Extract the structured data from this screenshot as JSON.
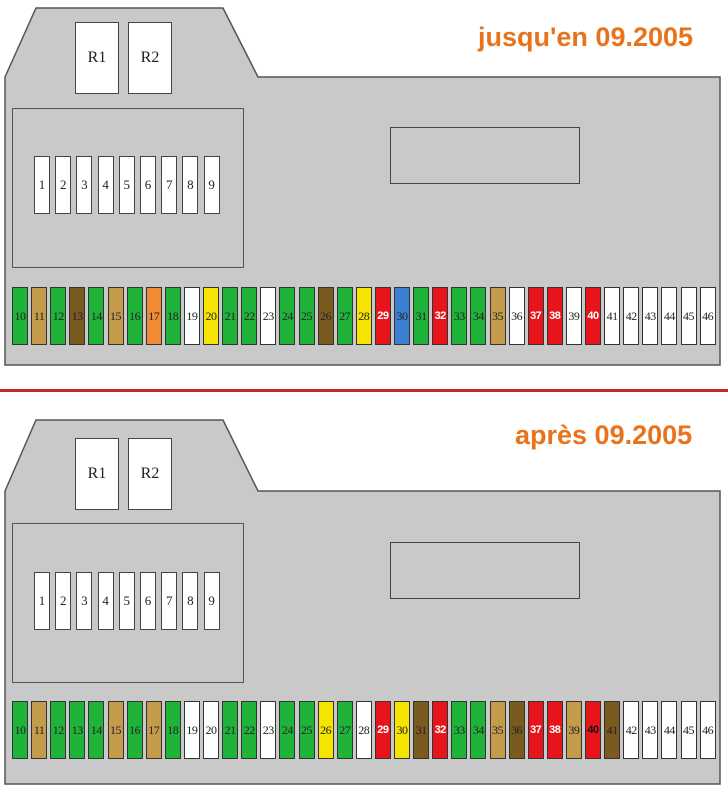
{
  "colors": {
    "white": "#ffffff",
    "green": "#1fb33a",
    "tan": "#c49a4b",
    "brown": "#7b5a20",
    "orange": "#f08a36",
    "yellow": "#f5e400",
    "red": "#e8141c",
    "blue": "#3a7fd0",
    "housing": "#c9c9c9",
    "title": "#e8731a",
    "divider": "#c0282a"
  },
  "diagrams": [
    {
      "title": "jusqu'en 09.2005",
      "relays": [
        "R1",
        "R2"
      ],
      "small_fuses": [
        "1",
        "2",
        "3",
        "4",
        "5",
        "6",
        "7",
        "8",
        "9"
      ],
      "fuses": [
        {
          "n": "10",
          "c": "green"
        },
        {
          "n": "11",
          "c": "tan"
        },
        {
          "n": "12",
          "c": "green"
        },
        {
          "n": "13",
          "c": "brown"
        },
        {
          "n": "14",
          "c": "green"
        },
        {
          "n": "15",
          "c": "tan"
        },
        {
          "n": "16",
          "c": "green"
        },
        {
          "n": "17",
          "c": "orange"
        },
        {
          "n": "18",
          "c": "green"
        },
        {
          "n": "19",
          "c": "white"
        },
        {
          "n": "20",
          "c": "yellow"
        },
        {
          "n": "21",
          "c": "green"
        },
        {
          "n": "22",
          "c": "green"
        },
        {
          "n": "23",
          "c": "white"
        },
        {
          "n": "24",
          "c": "green"
        },
        {
          "n": "25",
          "c": "green"
        },
        {
          "n": "26",
          "c": "brown"
        },
        {
          "n": "27",
          "c": "green"
        },
        {
          "n": "28",
          "c": "yellow"
        },
        {
          "n": "29",
          "c": "red"
        },
        {
          "n": "30",
          "c": "blue"
        },
        {
          "n": "31",
          "c": "green"
        },
        {
          "n": "32",
          "c": "red"
        },
        {
          "n": "33",
          "c": "green"
        },
        {
          "n": "34",
          "c": "green"
        },
        {
          "n": "35",
          "c": "tan"
        },
        {
          "n": "36",
          "c": "white"
        },
        {
          "n": "37",
          "c": "red"
        },
        {
          "n": "38",
          "c": "red"
        },
        {
          "n": "39",
          "c": "white"
        },
        {
          "n": "40",
          "c": "red"
        },
        {
          "n": "41",
          "c": "white"
        },
        {
          "n": "42",
          "c": "white"
        },
        {
          "n": "43",
          "c": "white"
        },
        {
          "n": "44",
          "c": "white"
        },
        {
          "n": "45",
          "c": "white"
        },
        {
          "n": "46",
          "c": "white"
        }
      ]
    },
    {
      "title": "après 09.2005",
      "relays": [
        "R1",
        "R2"
      ],
      "small_fuses": [
        "1",
        "2",
        "3",
        "4",
        "5",
        "6",
        "7",
        "8",
        "9"
      ],
      "fuses": [
        {
          "n": "10",
          "c": "green"
        },
        {
          "n": "11",
          "c": "tan"
        },
        {
          "n": "12",
          "c": "green"
        },
        {
          "n": "13",
          "c": "green"
        },
        {
          "n": "14",
          "c": "green"
        },
        {
          "n": "15",
          "c": "tan"
        },
        {
          "n": "16",
          "c": "green"
        },
        {
          "n": "17",
          "c": "tan"
        },
        {
          "n": "18",
          "c": "green"
        },
        {
          "n": "19",
          "c": "white"
        },
        {
          "n": "20",
          "c": "white"
        },
        {
          "n": "21",
          "c": "green"
        },
        {
          "n": "22",
          "c": "green"
        },
        {
          "n": "23",
          "c": "white"
        },
        {
          "n": "24",
          "c": "green"
        },
        {
          "n": "25",
          "c": "green"
        },
        {
          "n": "26",
          "c": "yellow"
        },
        {
          "n": "27",
          "c": "green"
        },
        {
          "n": "28",
          "c": "white"
        },
        {
          "n": "29",
          "c": "red"
        },
        {
          "n": "30",
          "c": "yellow"
        },
        {
          "n": "31",
          "c": "brown"
        },
        {
          "n": "32",
          "c": "red"
        },
        {
          "n": "33",
          "c": "green"
        },
        {
          "n": "34",
          "c": "green"
        },
        {
          "n": "35",
          "c": "tan"
        },
        {
          "n": "36",
          "c": "brown"
        },
        {
          "n": "37",
          "c": "red"
        },
        {
          "n": "38",
          "c": "red"
        },
        {
          "n": "39",
          "c": "tan"
        },
        {
          "n": "40",
          "c": "red"
        },
        {
          "n": "41",
          "c": "brown"
        },
        {
          "n": "42",
          "c": "white"
        },
        {
          "n": "43",
          "c": "white"
        },
        {
          "n": "44",
          "c": "white"
        },
        {
          "n": "45",
          "c": "white"
        },
        {
          "n": "46",
          "c": "white"
        }
      ]
    }
  ]
}
